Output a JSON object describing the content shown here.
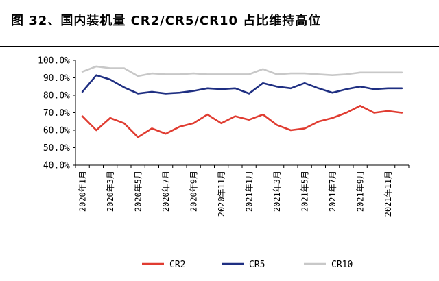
{
  "figure": {
    "title": "图 32、国内装机量 CR2/CR5/CR10 占比维持高位"
  },
  "chart_data": {
    "type": "line",
    "ylim": [
      40,
      100
    ],
    "yticks": [
      "40.0%",
      "50.0%",
      "60.0%",
      "70.0%",
      "80.0%",
      "90.0%",
      "100.0%"
    ],
    "ytick_values": [
      40,
      50,
      60,
      70,
      80,
      90,
      100
    ],
    "x": [
      "2020年1月",
      "2020年2月",
      "2020年3月",
      "2020年4月",
      "2020年5月",
      "2020年6月",
      "2020年7月",
      "2020年8月",
      "2020年9月",
      "2020年10月",
      "2020年11月",
      "2020年12月",
      "2021年1月",
      "2021年2月",
      "2021年3月",
      "2021年4月",
      "2021年5月",
      "2021年6月",
      "2021年7月",
      "2021年8月",
      "2021年9月",
      "2021年10月",
      "2021年11月",
      "2021年12月"
    ],
    "xticks": [
      "2020年1月",
      "2020年3月",
      "2020年5月",
      "2020年7月",
      "2020年9月",
      "2020年11月",
      "2021年1月",
      "2021年3月",
      "2021年5月",
      "2021年7月",
      "2021年9月",
      "2021年11月"
    ],
    "series": [
      {
        "name": "CR2",
        "color": "#e03c31",
        "values": [
          68,
          60,
          67,
          64,
          56,
          61,
          58,
          62,
          64,
          69,
          64,
          68,
          66,
          69,
          63,
          60,
          61,
          65,
          67,
          70,
          74,
          70,
          71,
          70
        ]
      },
      {
        "name": "CR5",
        "color": "#1f2f82",
        "values": [
          82,
          91.5,
          89,
          84.5,
          81,
          82,
          81,
          81.5,
          82.5,
          84,
          83.5,
          84,
          81,
          87,
          85,
          84,
          87,
          84,
          81.5,
          83.5,
          85,
          83.5,
          84,
          84
        ]
      },
      {
        "name": "CR10",
        "color": "#c8c8c8",
        "values": [
          93.5,
          96.5,
          95.5,
          95.5,
          91,
          92.5,
          92,
          92,
          92.5,
          92,
          92,
          92,
          92,
          95,
          92,
          92.5,
          92.5,
          92,
          91.5,
          92,
          93,
          93,
          93,
          93
        ]
      }
    ],
    "legend_position": "bottom",
    "grid": false
  }
}
